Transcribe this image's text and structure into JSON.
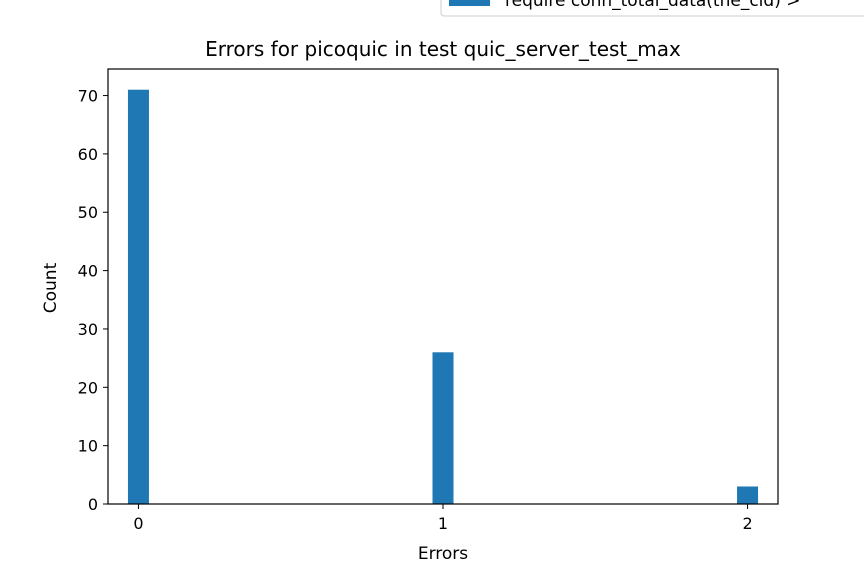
{
  "chart_data": {
    "type": "bar",
    "title": "Errors for picoquic in test quic_server_test_max",
    "xlabel": "Errors",
    "ylabel": "Count",
    "x_ticks": [
      "0",
      "1",
      "2"
    ],
    "y_ticks": [
      "0",
      "10",
      "20",
      "30",
      "40",
      "50",
      "60",
      "70"
    ],
    "xlim": [
      -0.1,
      2.1
    ],
    "ylim": [
      0,
      74.55
    ],
    "categories": [
      "0",
      "1",
      "2"
    ],
    "x": [
      0,
      1,
      2
    ],
    "values": [
      71,
      26,
      3
    ],
    "bar_color": "#1f77b4",
    "grid": false,
    "legend": {
      "placement": "top-right, partially outside",
      "entries": [
        {
          "label": "require conn_total_data(the_cid) >",
          "color": "#1f77b4"
        }
      ]
    }
  }
}
